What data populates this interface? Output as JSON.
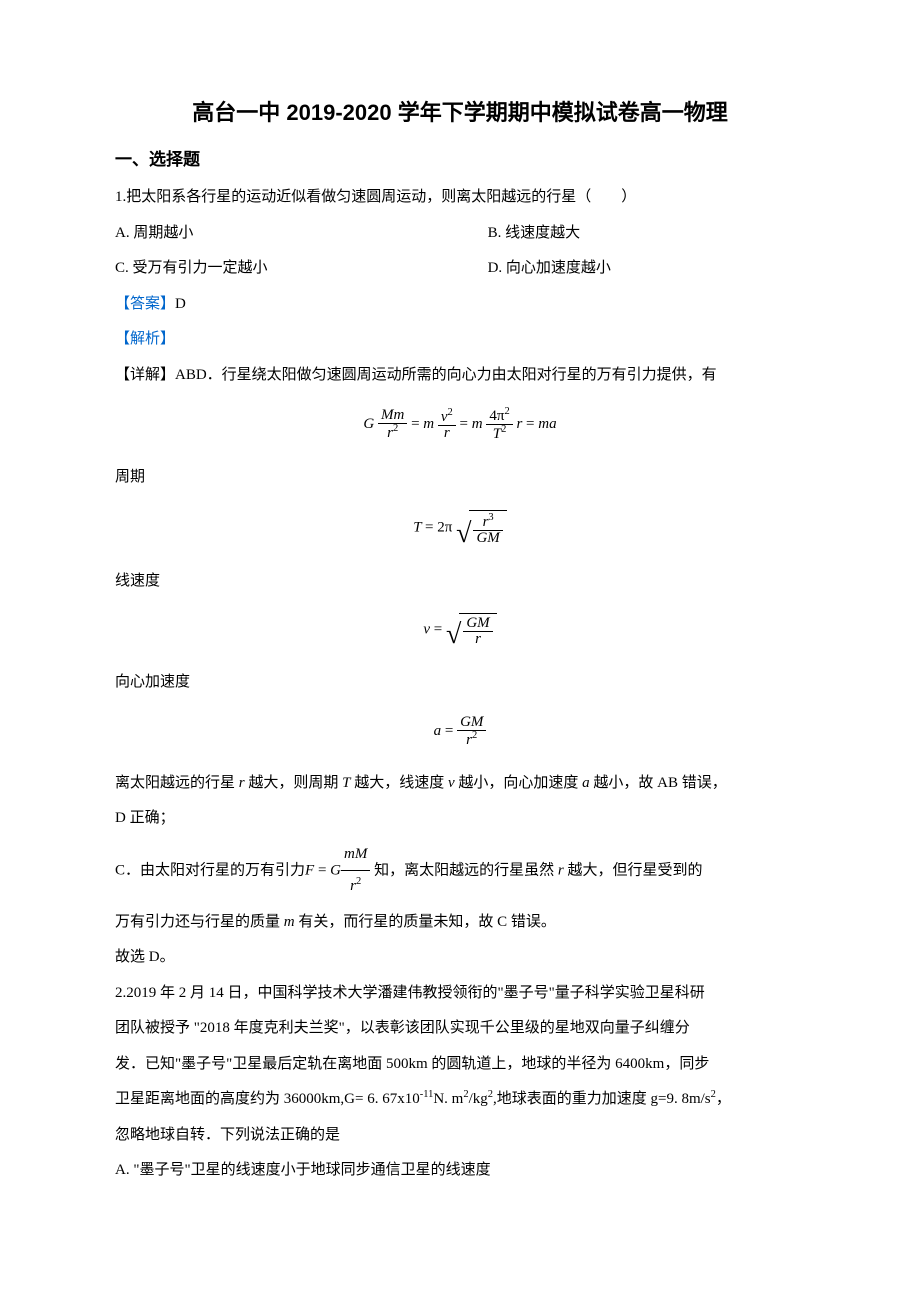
{
  "title": "高台一中 2019-2020 学年下学期期中模拟试卷高一物理",
  "section1": "一、选择题",
  "q1": {
    "stem": "1.把太阳系各行星的运动近似看做匀速圆周运动，则离太阳越远的行星（　　）",
    "optA": "A. 周期越小",
    "optB": "B. 线速度越大",
    "optC": "C. 受万有引力一定越小",
    "optD": "D. 向心加速度越小",
    "answer_label": "【答案】",
    "answer": "D",
    "explain_label": "【解析】",
    "detail_label": "【详解】ABD．行星绕太阳做匀速圆周运动所需的向心力由太阳对行星的万有引力提供，有",
    "period_label": "周期",
    "velocity_label": "线速度",
    "accel_label": "向心加速度",
    "conclusion1_a": "离太阳越远的行星 ",
    "conclusion1_b": " 越大，则周期 ",
    "conclusion1_c": " 越大，线速度 ",
    "conclusion1_d": " 越小，向心加速度 ",
    "conclusion1_e": " 越小，故 AB 错误，",
    "conclusion1_f": "D 正确；",
    "partC_a": "C．由太阳对行星的万有引力",
    "partC_b": "知，离太阳越远的行星虽然 ",
    "partC_c": " 越大，但行星受到的",
    "partC_d": "万有引力还与行星的质量 ",
    "partC_e": " 有关，而行星的质量未知，故 C 错误。",
    "final": "故选 D。"
  },
  "q2": {
    "stem1": "2.2019 年 2 月 14 日，中国科学技术大学潘建伟教授领衔的\"墨子号\"量子科学实验卫星科研",
    "stem2": "团队被授予 \"2018 年度克利夫兰奖\"，以表彰该团队实现千公里级的星地双向量子纠缠分",
    "stem3": "发．已知\"墨子号\"卫星最后定轨在离地面 500km 的圆轨道上，地球的半径为 6400km，同步",
    "stem4_a": "卫星距离地面的高度约为 36000km,G= 6. 67x10",
    "stem4_b": "N. m",
    "stem4_c": "/kg",
    "stem4_d": ",地球表面的重力加速度 g=9. 8m/s",
    "stem4_e": "，",
    "stem5": "忽略地球自转．下列说法正确的是",
    "optA": "A.  \"墨子号\"卫星的线速度小于地球同步通信卫星的线速度"
  },
  "vars": {
    "r": "r",
    "T": "T",
    "v": "v",
    "a": "a",
    "m": "m",
    "G": "G",
    "M": "M",
    "F": "F",
    "pi": "π",
    "eq": "=",
    "two": "2",
    "four": "4",
    "three": "3",
    "mM": "mM",
    "Mm": "Mm",
    "GM": "GM",
    "ma": "ma"
  },
  "colors": {
    "text": "#000000",
    "accent": "#0066cc",
    "background": "#ffffff"
  }
}
